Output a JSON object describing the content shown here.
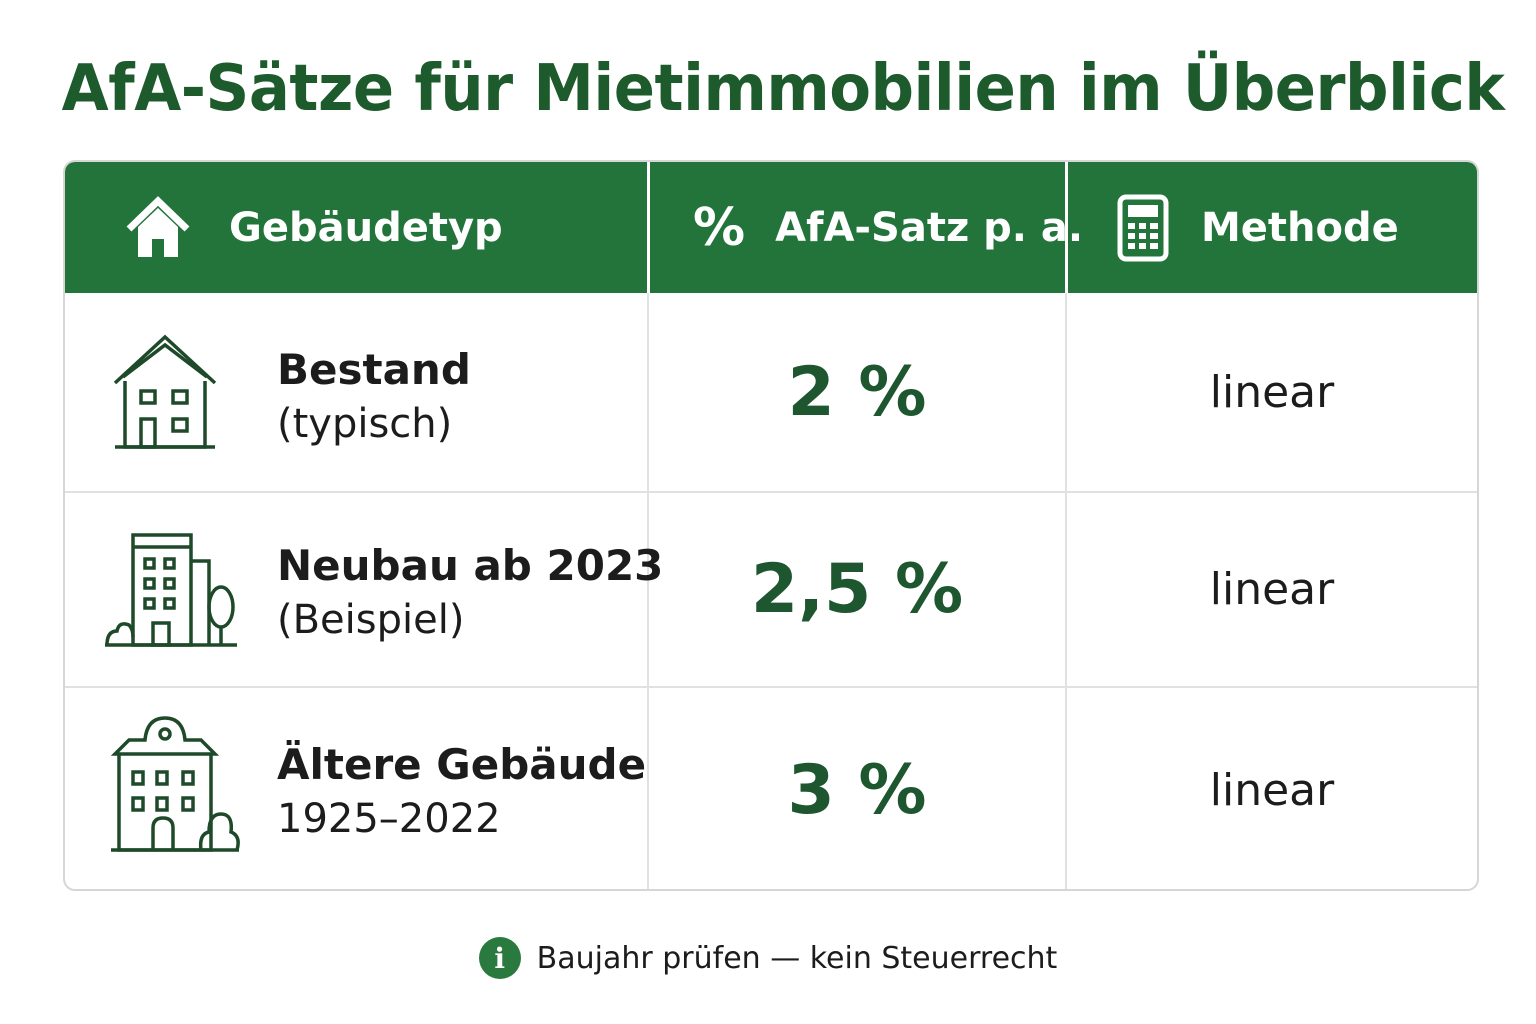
{
  "title": "AfA-Sätze für Mietimmobilien im Überblick",
  "colors": {
    "header_bg": "#22743a",
    "title": "#1d5a2c",
    "rate": "#1e5630",
    "info_icon": "#2a7a3f"
  },
  "table": {
    "headers": [
      {
        "icon": "house-icon",
        "prefix": "",
        "label": "Gebäudetyp"
      },
      {
        "icon": "percent-icon",
        "prefix": "%",
        "label": "AfA-Satz p. a."
      },
      {
        "icon": "calculator-icon",
        "prefix": "",
        "label": "Methode"
      }
    ],
    "rows": [
      {
        "icon": "house-outline-icon",
        "title": "Bestand",
        "subtitle": "(typisch)",
        "rate": "2 %",
        "method": "linear"
      },
      {
        "icon": "apartment-building-icon",
        "title": "Neubau ab 2023",
        "subtitle": "(Beispiel)",
        "rate": "2,5 %",
        "method": "linear"
      },
      {
        "icon": "old-building-icon",
        "title": "Ältere Gebäude",
        "subtitle": "1925–2022",
        "rate": "3 %",
        "method": "linear"
      }
    ]
  },
  "footer": {
    "icon": "info-icon",
    "info_glyph": "i",
    "text": "Baujahr prüfen — kein Steuerrecht"
  }
}
